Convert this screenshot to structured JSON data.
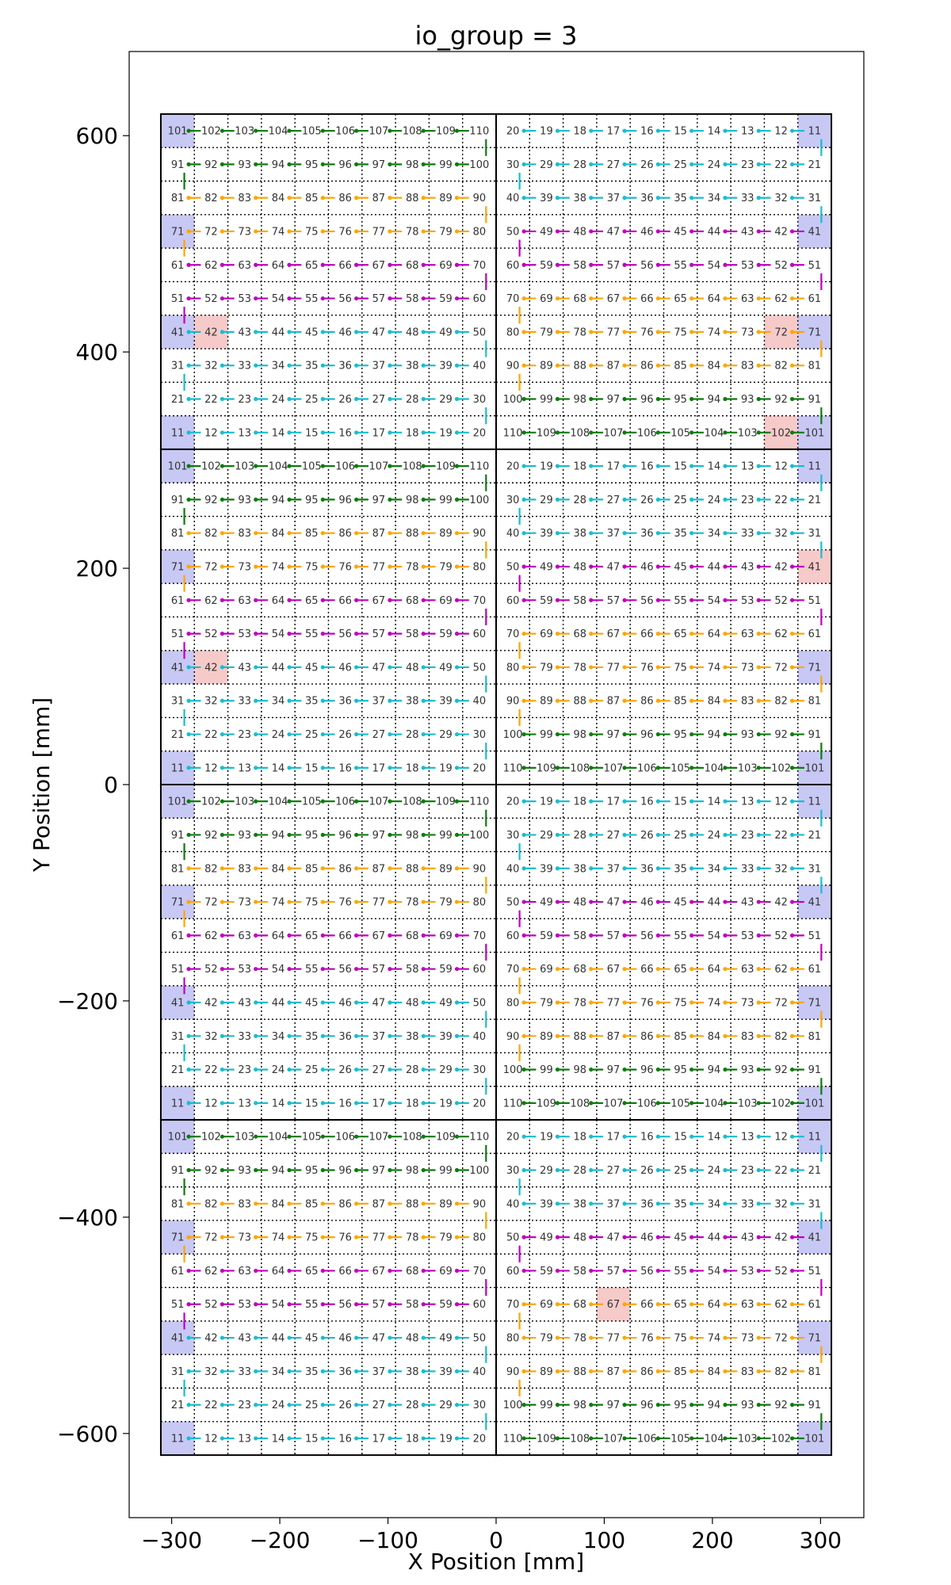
{
  "chart_data": {
    "type": "scatter",
    "title": "io_group = 3",
    "xlabel": "X Position [mm]",
    "ylabel": "Y Position [mm]",
    "xlim": [
      -340,
      340
    ],
    "ylim": [
      -680,
      680
    ],
    "xticks": [
      -300,
      -200,
      -100,
      0,
      100,
      200,
      300
    ],
    "xtick_labels": [
      "−300",
      "−200",
      "−100",
      "0",
      "100",
      "200",
      "300"
    ],
    "yticks": [
      -600,
      -400,
      -200,
      0,
      200,
      400,
      600
    ],
    "ytick_labels": [
      "−600",
      "−400",
      "−200",
      "0",
      "200",
      "400",
      "600"
    ],
    "grid": "dotted, one cell per chip",
    "tiles": {
      "x_ranges": [
        [
          -310,
          0
        ],
        [
          0,
          310
        ]
      ],
      "y_ranges": [
        [
          310,
          620
        ],
        [
          0,
          310
        ],
        [
          -310,
          0
        ],
        [
          -620,
          -310
        ]
      ],
      "rows_per_tile": 10,
      "cols_per_tile": 10
    },
    "chip_grids": {
      "left": [
        [
          101,
          102,
          103,
          104,
          105,
          106,
          107,
          108,
          109,
          110
        ],
        [
          91,
          92,
          93,
          94,
          95,
          96,
          97,
          98,
          99,
          100
        ],
        [
          81,
          82,
          83,
          84,
          85,
          86,
          87,
          88,
          89,
          90
        ],
        [
          71,
          72,
          73,
          74,
          75,
          76,
          77,
          78,
          79,
          80
        ],
        [
          61,
          62,
          63,
          64,
          65,
          66,
          67,
          68,
          69,
          70
        ],
        [
          51,
          52,
          53,
          54,
          55,
          56,
          57,
          58,
          59,
          60
        ],
        [
          41,
          42,
          43,
          44,
          45,
          46,
          47,
          48,
          49,
          50
        ],
        [
          31,
          32,
          33,
          34,
          35,
          36,
          37,
          38,
          39,
          40
        ],
        [
          21,
          22,
          23,
          24,
          25,
          26,
          27,
          28,
          29,
          30
        ],
        [
          11,
          12,
          13,
          14,
          15,
          16,
          17,
          18,
          19,
          20
        ]
      ],
      "right": [
        [
          20,
          19,
          18,
          17,
          16,
          15,
          14,
          13,
          12,
          11
        ],
        [
          30,
          29,
          28,
          27,
          26,
          25,
          24,
          23,
          22,
          21
        ],
        [
          40,
          39,
          38,
          37,
          36,
          35,
          34,
          33,
          32,
          31
        ],
        [
          50,
          49,
          48,
          47,
          46,
          45,
          44,
          43,
          42,
          41
        ],
        [
          60,
          59,
          58,
          57,
          56,
          55,
          54,
          53,
          52,
          51
        ],
        [
          70,
          69,
          68,
          67,
          66,
          65,
          64,
          63,
          62,
          61
        ],
        [
          80,
          79,
          78,
          77,
          76,
          75,
          74,
          73,
          72,
          71
        ],
        [
          90,
          89,
          88,
          87,
          86,
          85,
          84,
          83,
          82,
          81
        ],
        [
          100,
          99,
          98,
          97,
          96,
          95,
          94,
          93,
          92,
          91
        ],
        [
          110,
          109,
          108,
          107,
          106,
          105,
          104,
          103,
          102,
          101
        ]
      ]
    },
    "row_colors": {
      "left": [
        "green",
        "green",
        "orange",
        "orange",
        "magenta",
        "magenta",
        "cyan",
        "cyan",
        "cyan",
        "cyan"
      ],
      "right": [
        "cyan",
        "cyan",
        "cyan",
        "magenta",
        "magenta",
        "orange",
        "orange",
        "orange",
        "green",
        "green"
      ]
    },
    "io_chips": {
      "left": [
        101,
        71,
        41,
        11
      ],
      "right": [
        11,
        41,
        71,
        101
      ]
    },
    "highlighted_chips": [
      {
        "tile": "upper-left",
        "chip": 42
      },
      {
        "tile": "upper-right",
        "chip": 72
      },
      {
        "tile": "upper-right",
        "chip": 102
      },
      {
        "tile": "second-left",
        "chip": 42
      },
      {
        "tile": "second-right",
        "chip": 41
      },
      {
        "tile": "bottom-right",
        "chip": 67
      }
    ],
    "colors": {
      "green": "#0a7d0a",
      "orange": "#ffa500",
      "magenta": "#bf00bf",
      "cyan": "#17becf",
      "io_fill": "#c8c8f5",
      "fault_fill": "#f7caca",
      "grid": "#000000",
      "tile_border": "#000000"
    }
  }
}
